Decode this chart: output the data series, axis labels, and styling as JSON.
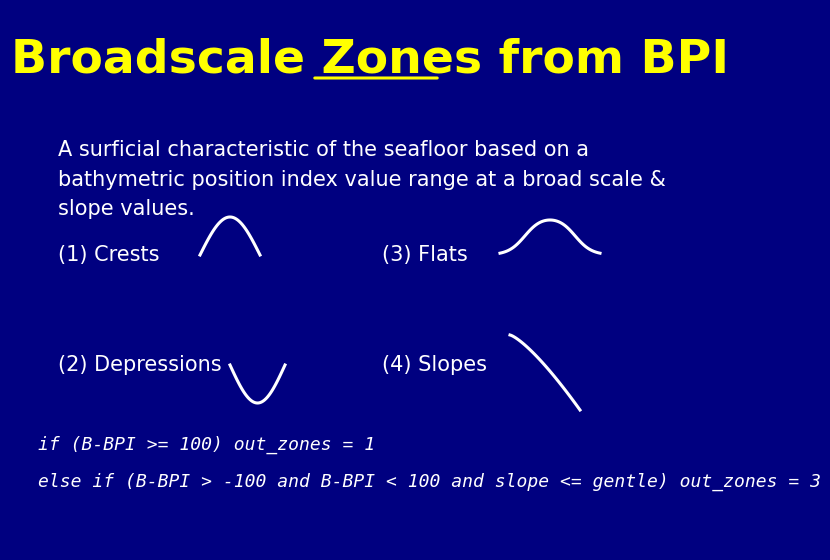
{
  "background_color": "#000080",
  "title_part1": "Broadscale ",
  "title_part2": "Zones",
  "title_part3": " from BPI",
  "title_color": "#FFFF00",
  "title_fontsize": 34,
  "body_text_color": "#FFFFFF",
  "body_text": "A surficial characteristic of the seafloor based on a\nbathymetric position index value range at a broad scale &\nslope values.",
  "body_fontsize": 15,
  "labels": [
    "(1) Crests",
    "(2) Depressions",
    "(3) Flats",
    "(4) Slopes"
  ],
  "code_line1": "if (B-BPI >= 100) out_zones = 1",
  "code_line2": "else if (B-BPI > -100 and B-BPI < 100 and slope <= gentle) out_zones = 3",
  "code_fontsize": 13,
  "curve_color": "#FFFFFF",
  "curve_linewidth": 2.2,
  "label_fontsize": 15
}
